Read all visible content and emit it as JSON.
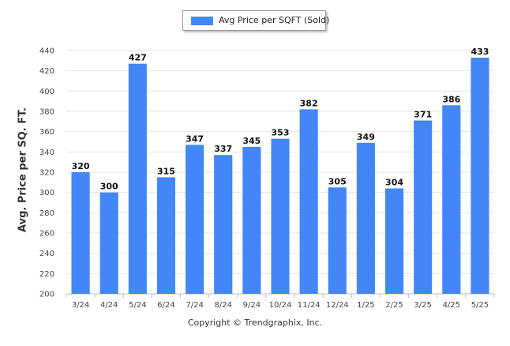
{
  "chart_data": {
    "type": "bar",
    "categories": [
      "3/24",
      "4/24",
      "5/24",
      "6/24",
      "7/24",
      "8/24",
      "9/24",
      "10/24",
      "11/24",
      "12/24",
      "1/25",
      "2/25",
      "3/25",
      "4/25",
      "5/25"
    ],
    "series": [
      {
        "name": "Avg Price per SQFT (Sold)",
        "values": [
          320,
          300,
          427,
          315,
          347,
          337,
          345,
          353,
          382,
          305,
          349,
          304,
          371,
          386,
          433
        ],
        "color": "#4287f5"
      }
    ],
    "title": "",
    "xlabel": "",
    "ylabel": "Avg. Price per SQ. FT.",
    "ylim": [
      200,
      440
    ],
    "yticks": [
      200,
      220,
      240,
      260,
      280,
      300,
      320,
      340,
      360,
      380,
      400,
      420,
      440
    ],
    "grid": true,
    "legend_position": "top-center",
    "data_labels": true
  },
  "footer": {
    "copyright": "Copyright © Trendgraphix, Inc."
  },
  "colors": {
    "bar": "#4287f5",
    "grid": "#e6e6e6",
    "axis": "#c0c0c0"
  }
}
